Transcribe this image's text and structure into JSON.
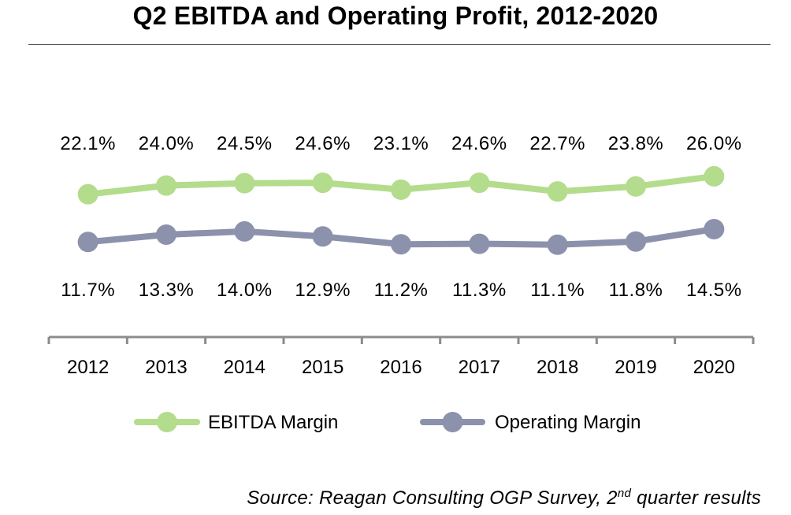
{
  "chart_data": {
    "type": "line",
    "title": "Q2 EBITDA and Operating Profit, 2012-2020",
    "categories": [
      "2012",
      "2013",
      "2014",
      "2015",
      "2016",
      "2017",
      "2018",
      "2019",
      "2020"
    ],
    "ylim": [
      0,
      30
    ],
    "grid": false,
    "legend_position": "bottom",
    "series": [
      {
        "name": "EBITDA Margin",
        "color": "#b3dc8c",
        "values": [
          22.1,
          24.0,
          24.5,
          24.6,
          23.1,
          24.6,
          22.7,
          23.8,
          26.0
        ],
        "labels": [
          "22.1%",
          "24.0%",
          "24.5%",
          "24.6%",
          "23.1%",
          "24.6%",
          "22.7%",
          "23.8%",
          "26.0%"
        ],
        "label_side": "above"
      },
      {
        "name": "Operating Margin",
        "color": "#8c92ac",
        "values": [
          11.7,
          13.3,
          14.0,
          12.9,
          11.2,
          11.3,
          11.1,
          11.8,
          14.5
        ],
        "labels": [
          "11.7%",
          "13.3%",
          "14.0%",
          "12.9%",
          "11.2%",
          "11.3%",
          "11.1%",
          "11.8%",
          "14.5%"
        ],
        "label_side": "below"
      }
    ]
  },
  "source": {
    "prefix": "Source: Reagan Consulting OGP Survey, 2",
    "superscript": "nd",
    "suffix": " quarter results"
  }
}
